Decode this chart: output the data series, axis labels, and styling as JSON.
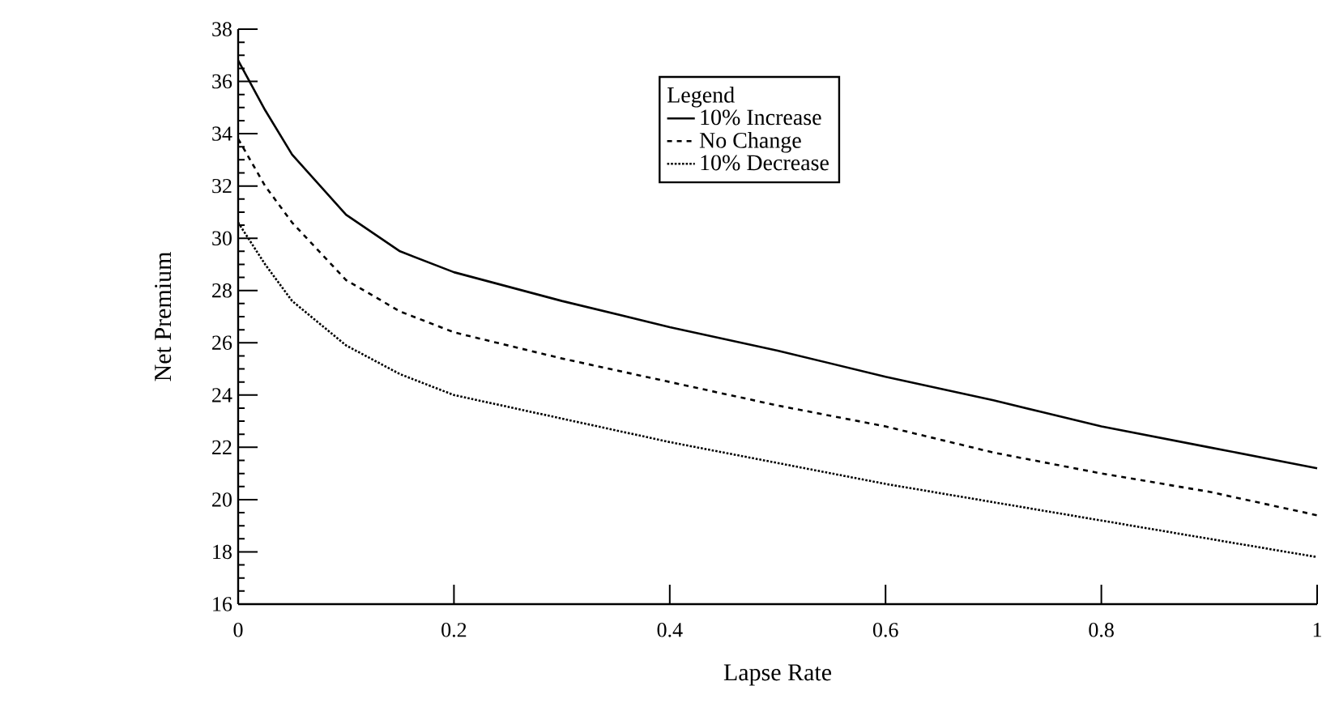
{
  "chart_data": {
    "type": "line",
    "xlabel": "Lapse Rate",
    "ylabel": "Net Premium",
    "legend_title": "Legend",
    "legend": "top right",
    "xlim": [
      0,
      1
    ],
    "ylim": [
      16,
      38
    ],
    "xticks": [
      0,
      0.2,
      0.4,
      0.6,
      0.8,
      1
    ],
    "yticks": [
      16,
      18,
      20,
      22,
      24,
      26,
      28,
      30,
      32,
      34,
      36,
      38
    ],
    "series": [
      {
        "name": "10% Increase",
        "color": "#000000",
        "line_style": "solid",
        "x": [
          0,
          0.025,
          0.05,
          0.1,
          0.15,
          0.2,
          0.3,
          0.4,
          0.5,
          0.6,
          0.7,
          0.8,
          0.9,
          1
        ],
        "values": [
          36.8,
          34.9,
          33.2,
          30.9,
          29.5,
          28.7,
          27.6,
          26.6,
          25.7,
          24.7,
          23.8,
          22.8,
          22.0,
          21.2
        ]
      },
      {
        "name": "No Change",
        "color": "#000000",
        "line_style": "dashed",
        "x": [
          0,
          0.025,
          0.05,
          0.1,
          0.15,
          0.2,
          0.3,
          0.4,
          0.5,
          0.6,
          0.7,
          0.8,
          0.9,
          1
        ],
        "values": [
          33.8,
          32.0,
          30.6,
          28.4,
          27.2,
          26.4,
          25.4,
          24.5,
          23.6,
          22.8,
          21.8,
          21.0,
          20.3,
          19.4
        ]
      },
      {
        "name": "10% Decrease",
        "color": "#000000",
        "line_style": "dotted",
        "x": [
          0,
          0.025,
          0.05,
          0.1,
          0.15,
          0.2,
          0.3,
          0.4,
          0.5,
          0.6,
          0.7,
          0.8,
          0.9,
          1
        ],
        "values": [
          30.6,
          29.0,
          27.6,
          25.9,
          24.8,
          24.0,
          23.1,
          22.2,
          21.4,
          20.6,
          19.9,
          19.2,
          18.5,
          17.8
        ]
      }
    ]
  }
}
